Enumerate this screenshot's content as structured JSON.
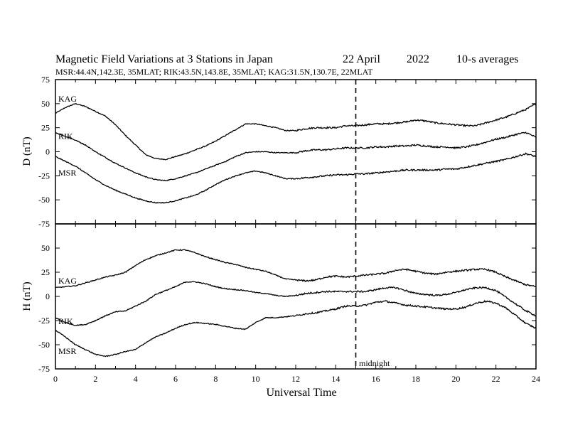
{
  "header": {
    "title": "Magnetic Field Variations at 3 Stations in Japan",
    "date": "22 April",
    "year": "2022",
    "averaging": "10-s averages",
    "stations_line": "MSR:44.4N,142.3E, 35MLAT;  RIK:43.5N,143.8E, 35MLAT;  KAG:31.5N,130.7E, 22MLAT"
  },
  "chart_data": [
    {
      "type": "line",
      "panel": "D",
      "ylabel": "D (nT)",
      "ylim": [
        -75,
        75
      ],
      "yticks": [
        "75",
        "50",
        "25",
        "0",
        "-25",
        "-50",
        "-75"
      ],
      "xlim": [
        0,
        24
      ],
      "series": [
        {
          "name": "KAG",
          "x": [
            0,
            0.5,
            1,
            1.5,
            2,
            2.5,
            3,
            3.5,
            4,
            4.5,
            5,
            5.5,
            6,
            6.5,
            7,
            7.5,
            8,
            8.5,
            9,
            9.5,
            10,
            10.5,
            11,
            11.5,
            12,
            12.5,
            13,
            13.5,
            14,
            14.5,
            15,
            15.5,
            16,
            16.5,
            17,
            17.5,
            18,
            18.5,
            19,
            19.5,
            20,
            20.5,
            21,
            21.5,
            22,
            22.5,
            23,
            23.5,
            24
          ],
          "y": [
            40,
            46,
            50,
            47,
            42,
            37,
            28,
            17,
            7,
            -3,
            -7,
            -8,
            -5,
            -2,
            2,
            6,
            11,
            17,
            23,
            29,
            29,
            27,
            25,
            22,
            22,
            24,
            25,
            25,
            25,
            27,
            27,
            28,
            29,
            29,
            30,
            31,
            33,
            32,
            30,
            29,
            28,
            27,
            27,
            30,
            33,
            36,
            40,
            44,
            50
          ]
        },
        {
          "name": "RIK",
          "x": [
            0,
            0.5,
            1,
            1.5,
            2,
            2.5,
            3,
            3.5,
            4,
            4.5,
            5,
            5.5,
            6,
            6.5,
            7,
            7.5,
            8,
            8.5,
            9,
            9.5,
            10,
            10.5,
            11,
            11.5,
            12,
            12.5,
            13,
            13.5,
            14,
            14.5,
            15,
            15.5,
            16,
            16.5,
            17,
            17.5,
            18,
            18.5,
            19,
            19.5,
            20,
            20.5,
            21,
            21.5,
            22,
            22.5,
            23,
            23.5,
            24
          ],
          "y": [
            20,
            16,
            12,
            7,
            0,
            -6,
            -12,
            -17,
            -22,
            -26,
            -29,
            -30,
            -28,
            -25,
            -22,
            -18,
            -14,
            -10,
            -5,
            -1,
            0,
            0,
            -1,
            -1,
            -1,
            1,
            2,
            2,
            3,
            4,
            4,
            4,
            5,
            5,
            6,
            6,
            7,
            6,
            5,
            5,
            4,
            5,
            7,
            10,
            13,
            15,
            18,
            20,
            15
          ]
        },
        {
          "name": "MSR",
          "x": [
            0,
            0.5,
            1,
            1.5,
            2,
            2.5,
            3,
            3.5,
            4,
            4.5,
            5,
            5.5,
            6,
            6.5,
            7,
            7.5,
            8,
            8.5,
            9,
            9.5,
            10,
            10.5,
            11,
            11.5,
            12,
            12.5,
            13,
            13.5,
            14,
            14.5,
            15,
            15.5,
            16,
            16.5,
            17,
            17.5,
            18,
            18.5,
            19,
            19.5,
            20,
            20.5,
            21,
            21.5,
            22,
            22.5,
            23,
            23.5,
            24
          ],
          "y": [
            -5,
            -10,
            -15,
            -22,
            -29,
            -35,
            -40,
            -44,
            -48,
            -51,
            -53,
            -53,
            -51,
            -48,
            -45,
            -40,
            -34,
            -29,
            -25,
            -22,
            -20,
            -22,
            -25,
            -28,
            -28,
            -27,
            -26,
            -25,
            -24,
            -24,
            -23,
            -23,
            -22,
            -21,
            -20,
            -19,
            -19,
            -19,
            -19,
            -18,
            -18,
            -16,
            -14,
            -12,
            -10,
            -8,
            -5,
            -2,
            -5
          ]
        }
      ]
    },
    {
      "type": "line",
      "panel": "H",
      "ylabel": "H (nT)",
      "ylim": [
        -75,
        75
      ],
      "yticks": [
        "50",
        "25",
        "0",
        "-25",
        "-50",
        "-75"
      ],
      "xlim": [
        0,
        24
      ],
      "xticks": [
        "0",
        "2",
        "4",
        "6",
        "8",
        "10",
        "12",
        "14",
        "16",
        "18",
        "20",
        "22",
        "24"
      ],
      "xlabel": "Universal Time",
      "series": [
        {
          "name": "KAG",
          "x": [
            0,
            0.5,
            1,
            1.5,
            2,
            2.5,
            3,
            3.5,
            4,
            4.5,
            5,
            5.5,
            6,
            6.5,
            7,
            7.5,
            8,
            8.5,
            9,
            9.5,
            10,
            10.5,
            11,
            11.5,
            12,
            12.5,
            13,
            13.5,
            14,
            14.5,
            15,
            15.5,
            16,
            16.5,
            17,
            17.5,
            18,
            18.5,
            19,
            19.5,
            20,
            20.5,
            21,
            21.5,
            22,
            22.5,
            23,
            23.5,
            24
          ],
          "y": [
            9,
            10,
            11,
            14,
            17,
            20,
            22,
            25,
            32,
            38,
            42,
            45,
            48,
            48,
            45,
            41,
            38,
            35,
            33,
            30,
            28,
            26,
            22,
            18,
            17,
            16,
            17,
            20,
            21,
            20,
            21,
            22,
            23,
            24,
            27,
            28,
            26,
            24,
            23,
            25,
            26,
            27,
            28,
            28,
            25,
            20,
            16,
            12,
            10
          ]
        },
        {
          "name": "RIK",
          "x": [
            0,
            0.5,
            1,
            1.5,
            2,
            2.5,
            3,
            3.5,
            4,
            4.5,
            5,
            5.5,
            6,
            6.5,
            7,
            7.5,
            8,
            8.5,
            9,
            9.5,
            10,
            10.5,
            11,
            11.5,
            12,
            12.5,
            13,
            13.5,
            14,
            14.5,
            15,
            15.5,
            16,
            16.5,
            17,
            17.5,
            18,
            18.5,
            19,
            19.5,
            20,
            20.5,
            21,
            21.5,
            22,
            22.5,
            23,
            23.5,
            24
          ],
          "y": [
            -22,
            -27,
            -30,
            -29,
            -25,
            -20,
            -16,
            -15,
            -10,
            -5,
            2,
            6,
            10,
            15,
            15,
            13,
            10,
            8,
            7,
            6,
            4,
            3,
            1,
            0,
            1,
            3,
            4,
            5,
            5,
            5,
            5,
            5,
            7,
            9,
            9,
            6,
            3,
            2,
            1,
            2,
            4,
            7,
            9,
            9,
            6,
            -1,
            -8,
            -15,
            -20
          ]
        },
        {
          "name": "MSR",
          "x": [
            0,
            0.5,
            1,
            1.5,
            2,
            2.5,
            3,
            3.5,
            4,
            4.5,
            5,
            5.5,
            6,
            6.5,
            7,
            7.5,
            8,
            8.5,
            9,
            9.5,
            10,
            10.5,
            11,
            11.5,
            12,
            12.5,
            13,
            13.5,
            14,
            14.5,
            15,
            15.5,
            16,
            16.5,
            17,
            17.5,
            18,
            18.5,
            19,
            19.5,
            20,
            20.5,
            21,
            21.5,
            22,
            22.5,
            23,
            23.5,
            24
          ],
          "y": [
            -35,
            -42,
            -50,
            -55,
            -60,
            -62,
            -60,
            -57,
            -55,
            -48,
            -42,
            -38,
            -33,
            -29,
            -27,
            -28,
            -29,
            -31,
            -33,
            -34,
            -27,
            -22,
            -22,
            -21,
            -20,
            -18,
            -17,
            -15,
            -13,
            -10,
            -10,
            -9,
            -6,
            -5,
            -7,
            -9,
            -10,
            -11,
            -12,
            -13,
            -13,
            -11,
            -7,
            -5,
            -7,
            -12,
            -20,
            -28,
            -33
          ]
        }
      ]
    }
  ],
  "annotations": {
    "midnight_label": "midnight",
    "midnight_ut": 15
  },
  "colors": {
    "line": "#000000",
    "background": "#ffffff"
  }
}
